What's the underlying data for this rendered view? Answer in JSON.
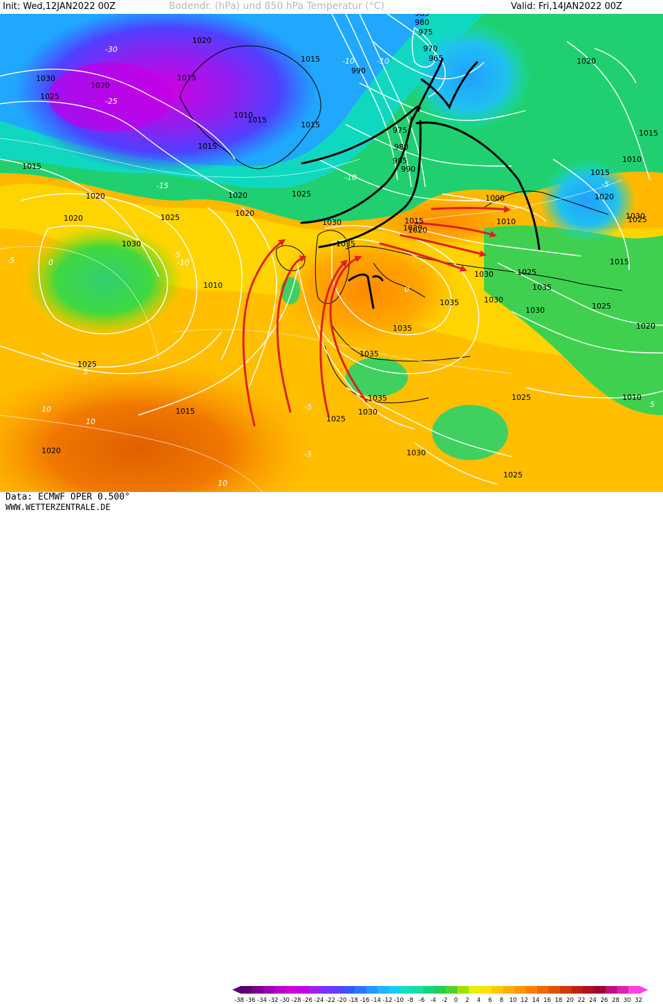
{
  "header": {
    "init_label": "Init: Wed,12JAN2022 00Z",
    "title": "Bodendr. (hPa) und 850 hPa Temperatur (°C)",
    "valid_label": "Valid: Fri,14JAN2022 00Z"
  },
  "footer": {
    "data_source": "Data: ECMWF OPER 0.500°",
    "website": "WWW.WETTERZENTRALE.DE"
  },
  "colorscale": {
    "ticks": [
      "-38",
      "-36",
      "-34",
      "-32",
      "-30",
      "-28",
      "-26",
      "-24",
      "-22",
      "-20",
      "-18",
      "-16",
      "-14",
      "-12",
      "-10",
      "-8",
      "-6",
      "-4",
      "-2",
      "0",
      "2",
      "4",
      "6",
      "8",
      "10",
      "12",
      "14",
      "16",
      "18",
      "20",
      "22",
      "24",
      "26",
      "28",
      "30",
      "32"
    ],
    "colors": [
      "#5a0072",
      "#7a008f",
      "#9a00ad",
      "#b800c8",
      "#d000d8",
      "#c000e8",
      "#9a20f0",
      "#7a30ff",
      "#5a40ff",
      "#3a55ff",
      "#2a75ff",
      "#2a95ff",
      "#20b5ff",
      "#10d0f0",
      "#10e0c8",
      "#10e0a0",
      "#10d878",
      "#20d050",
      "#50d030",
      "#a0e000",
      "#e8f000",
      "#ffe000",
      "#ffc800",
      "#ffb000",
      "#ff9800",
      "#ff8000",
      "#f06800",
      "#e05000",
      "#d03800",
      "#c02010",
      "#b01020",
      "#a00030",
      "#c01080",
      "#e020b0",
      "#ff40e0"
    ]
  },
  "pressure_labels": [
    "1030",
    "1025",
    "1020",
    "1020",
    "1015",
    "1015",
    "1010",
    "1015",
    "1015",
    "1015",
    "1020",
    "1020",
    "990",
    "985",
    "980",
    "975",
    "970",
    "965",
    "975",
    "980",
    "985",
    "990",
    "1015",
    "1020",
    "1020",
    "1025",
    "1025",
    "1030",
    "1030",
    "1020",
    "1010",
    "1035",
    "1000",
    "1010",
    "1015",
    "1020",
    "1025",
    "1030",
    "1035",
    "1035",
    "1035",
    "1035",
    "1030",
    "1025",
    "1015",
    "1020",
    "1015",
    "1010",
    "1015",
    "1020",
    "1025",
    "1025",
    "1020",
    "1030",
    "1025",
    "1015",
    "1020",
    "1025",
    "1010",
    "1030",
    "1030",
    "1035",
    "1025",
    "1030"
  ],
  "temperature_labels": [
    "-30",
    "-25",
    "-10",
    "-10",
    "-15",
    "-10",
    "-5",
    "0",
    "0",
    "-5",
    "-10",
    "-5",
    "10",
    "5",
    "10",
    "-5",
    "-5",
    "5",
    "10"
  ]
}
